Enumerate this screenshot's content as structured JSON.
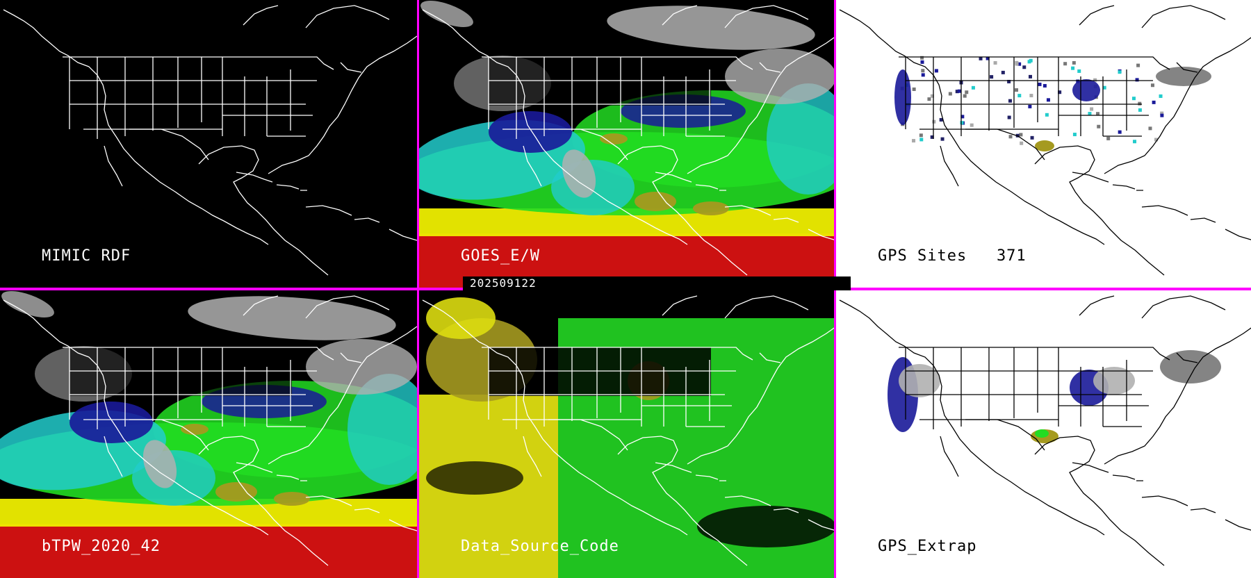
{
  "panels": [
    {
      "id": "p1",
      "label": "MIMIC RDF",
      "theme": "dark",
      "field": "none"
    },
    {
      "id": "p2",
      "label": "GOES_E/W",
      "theme": "dark",
      "field": "tpw"
    },
    {
      "id": "p3",
      "label": "GPS Sites   371",
      "theme": "light",
      "field": "sites"
    },
    {
      "id": "p4",
      "label": "bTPW_2020_42",
      "theme": "dark",
      "field": "tpw"
    },
    {
      "id": "p5",
      "label": "Data_Source_Code",
      "theme": "dark",
      "field": "source"
    },
    {
      "id": "p6",
      "label": "GPS_Extrap",
      "theme": "light",
      "field": "extrap"
    }
  ],
  "timestamp": "202509122",
  "colors": {
    "divider": "#ff00ff",
    "map_lines_dark": "#ffffff",
    "map_lines_light": "#000000",
    "tpw_dry": "#1a1a99",
    "tpw_low": "#22cccc",
    "tpw_mid": "#22dd22",
    "tpw_moist": "#a59a20",
    "tpw_high": "#eeee00",
    "tpw_veryhigh": "#cc1111",
    "source_yellow": "#dddd11",
    "source_green": "#22cc22",
    "cloud_gray": "#b0b0b0"
  }
}
